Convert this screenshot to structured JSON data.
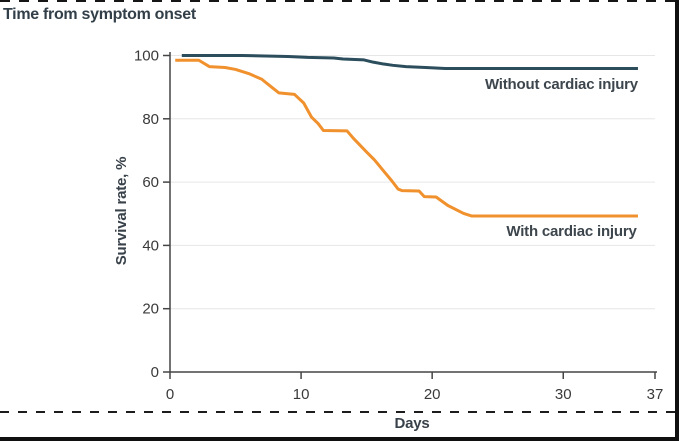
{
  "colors": {
    "without_injury_line": "#2b4d5c",
    "with_injury_line": "#f0912d",
    "title_text": "#323f48",
    "axis_line": "#454545",
    "tick_text": "#3a3a3a",
    "gridline": "#e6e6e6",
    "annotation_text": "#3d464d",
    "screenshot_border": "#101010"
  },
  "chart_data": {
    "type": "line",
    "title": "Time from symptom onset",
    "xlabel": "Days",
    "ylabel": "Survival rate, %",
    "xlim": [
      0,
      37
    ],
    "ylim": [
      0,
      100
    ],
    "xticks": [
      0,
      10,
      20,
      30,
      37
    ],
    "yticks": [
      0,
      20,
      40,
      60,
      80,
      100
    ],
    "grid": "horizontal-gridlines-on",
    "legend": "inline-labels-right",
    "series": [
      {
        "name": "Without cardiac injury",
        "color": "#2b4d5c",
        "x": [
          0.9,
          5.5,
          9,
          10.5,
          12.5,
          13.2,
          14.8,
          15.5,
          16.3,
          17,
          18,
          19.5,
          21,
          35.7
        ],
        "y": [
          100,
          100,
          99.7,
          99.4,
          99.2,
          98.9,
          98.6,
          97.9,
          97.3,
          96.9,
          96.5,
          96.2,
          95.9,
          95.9
        ]
      },
      {
        "name": "With cardiac injury",
        "color": "#f0912d",
        "x": [
          0.4,
          2.2,
          3,
          4.2,
          5,
          6,
          7,
          7.6,
          8.3,
          9.5,
          10.2,
          10.8,
          11.3,
          11.7,
          13.5,
          14,
          15,
          15.6,
          16.3,
          16.9,
          17.4,
          17.7,
          19,
          19.4,
          20.3,
          21.2,
          22.4,
          23,
          35.7
        ],
        "y": [
          98.5,
          98.5,
          96.5,
          96.2,
          95.6,
          94.3,
          92.5,
          90.5,
          88.2,
          87.7,
          85,
          80.5,
          78.5,
          76.3,
          76.2,
          73.8,
          69.5,
          67,
          63.5,
          60.5,
          57.8,
          57.3,
          57.2,
          55.4,
          55.3,
          52.6,
          50.1,
          49.3,
          49.3
        ]
      }
    ],
    "annotations": [
      {
        "text": "Without cardiac injury",
        "x": 35.7,
        "y": 91,
        "anchor": "end"
      },
      {
        "text": "With cardiac injury",
        "x": 35.6,
        "y": 44.5,
        "anchor": "end"
      }
    ]
  }
}
